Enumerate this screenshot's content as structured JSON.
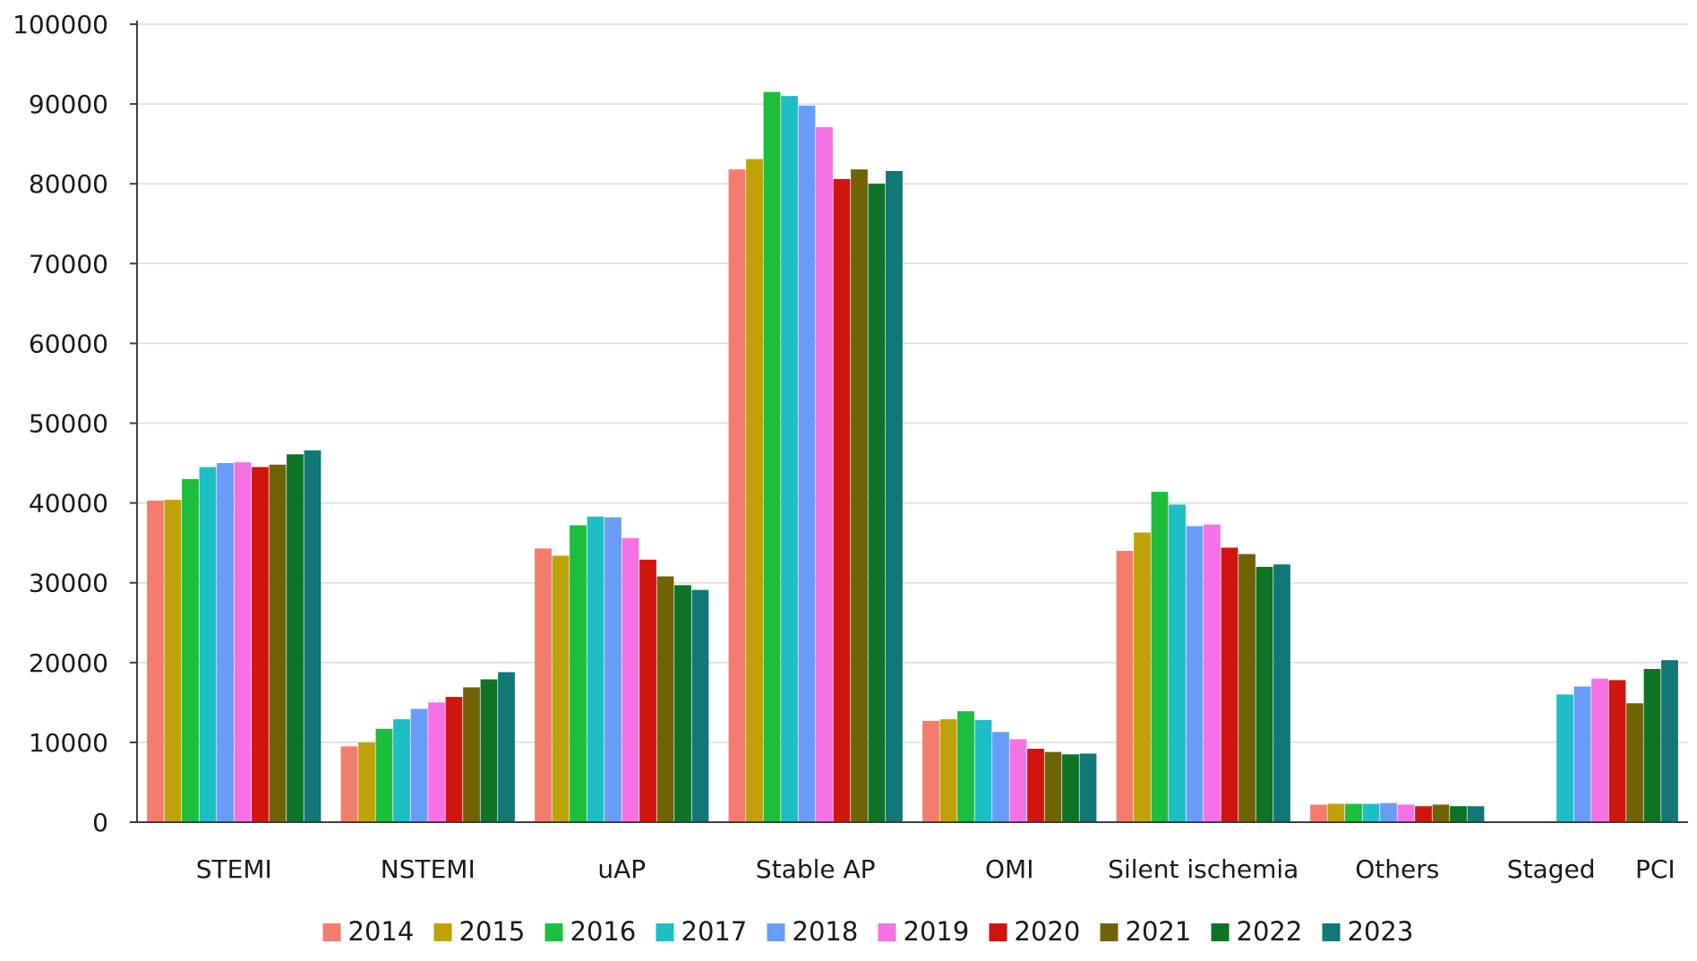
{
  "chart_data": {
    "type": "bar",
    "title": "",
    "xlabel": "",
    "ylabel": "",
    "ylim": [
      0,
      100000
    ],
    "yticks": [
      0,
      10000,
      20000,
      30000,
      40000,
      50000,
      60000,
      70000,
      80000,
      90000,
      100000
    ],
    "grid": true,
    "legend_position": "bottom",
    "categories": [
      "STEMI",
      "NSTEMI",
      "uAP",
      "Stable AP",
      "OMI",
      "Silent ischemia",
      "Others",
      "Staged     PCI"
    ],
    "series": [
      {
        "name": "2014",
        "color": "#F47C6F",
        "values": [
          40300,
          9500,
          34300,
          81800,
          12700,
          34000,
          2200,
          null
        ]
      },
      {
        "name": "2015",
        "color": "#BFA20B",
        "values": [
          40400,
          10000,
          33400,
          83100,
          12900,
          36300,
          2300,
          null
        ]
      },
      {
        "name": "2016",
        "color": "#1DBD3E",
        "values": [
          43000,
          11700,
          37200,
          91500,
          13900,
          41400,
          2300,
          null
        ]
      },
      {
        "name": "2017",
        "color": "#1DBFC4",
        "values": [
          44500,
          12900,
          38300,
          91000,
          12800,
          39800,
          2300,
          16000
        ]
      },
      {
        "name": "2018",
        "color": "#699CF7",
        "values": [
          45000,
          14200,
          38200,
          89800,
          11300,
          37100,
          2400,
          17000
        ]
      },
      {
        "name": "2019",
        "color": "#F472E3",
        "values": [
          45100,
          15000,
          35600,
          87100,
          10400,
          37300,
          2200,
          18000
        ]
      },
      {
        "name": "2020",
        "color": "#D0150F",
        "values": [
          44500,
          15700,
          32900,
          80600,
          9200,
          34400,
          2000,
          17800
        ]
      },
      {
        "name": "2021",
        "color": "#706305",
        "values": [
          44800,
          16900,
          30800,
          81800,
          8800,
          33600,
          2200,
          14900
        ]
      },
      {
        "name": "2022",
        "color": "#0E7325",
        "values": [
          46100,
          17900,
          29700,
          80000,
          8500,
          32000,
          2000,
          19200
        ]
      },
      {
        "name": "2023",
        "color": "#117777",
        "values": [
          46600,
          18800,
          29100,
          81600,
          8600,
          32300,
          2000,
          20300
        ]
      }
    ]
  }
}
